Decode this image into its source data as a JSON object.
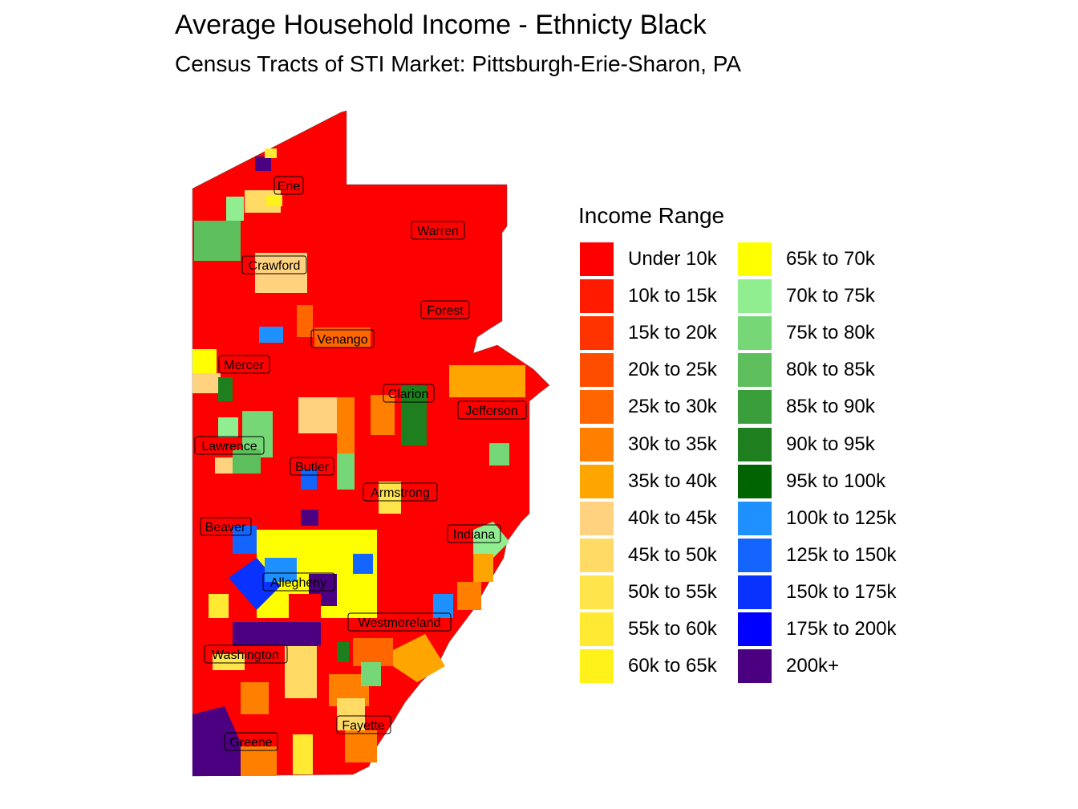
{
  "title": "Average Household Income - Ethnicty Black",
  "subtitle": "Census Tracts of STI Market: Pittsburgh-Erie-Sharon, PA",
  "legend": {
    "title": "Income Range",
    "items": [
      {
        "label": "Under 10k",
        "color": "#FF0000"
      },
      {
        "label": "10k to 15k",
        "color": "#FF1A00"
      },
      {
        "label": "15k to 20k",
        "color": "#FF3300"
      },
      {
        "label": "20k to 25k",
        "color": "#FF4D00"
      },
      {
        "label": "25k to 30k",
        "color": "#FF6600"
      },
      {
        "label": "30k to 35k",
        "color": "#FF8000"
      },
      {
        "label": "35k to 40k",
        "color": "#FFA500"
      },
      {
        "label": "40k to 45k",
        "color": "#FFD27F"
      },
      {
        "label": "45k to 50k",
        "color": "#FFDB66"
      },
      {
        "label": "50k to 55k",
        "color": "#FFE44C"
      },
      {
        "label": "55k to 60k",
        "color": "#FFE933"
      },
      {
        "label": "60k to 65k",
        "color": "#FFF21A"
      },
      {
        "label": "65k to 70k",
        "color": "#FFFF00"
      },
      {
        "label": "70k to 75k",
        "color": "#90EE90"
      },
      {
        "label": "75k to 80k",
        "color": "#76D776"
      },
      {
        "label": "80k to 85k",
        "color": "#5CBF5C"
      },
      {
        "label": "85k to 90k",
        "color": "#3A9E3A"
      },
      {
        "label": "90k to 95k",
        "color": "#1E7F1E"
      },
      {
        "label": "95k to 100k",
        "color": "#006400"
      },
      {
        "label": "100k to 125k",
        "color": "#1E90FF"
      },
      {
        "label": "125k to 150k",
        "color": "#1464FF"
      },
      {
        "label": "150k to 175k",
        "color": "#0A32FF"
      },
      {
        "label": "175k to 200k",
        "color": "#0000FF"
      },
      {
        "label": "200k+",
        "color": "#4B0082"
      }
    ]
  },
  "counties": [
    "Erie",
    "Warren",
    "Crawford",
    "Forest",
    "Venango",
    "Mercer",
    "Clarion",
    "Jefferson",
    "Lawrence",
    "Butler",
    "Armstrong",
    "Beaver",
    "Indiana",
    "Allegheny",
    "Westmoreland",
    "Washington",
    "Fayette",
    "Greene"
  ]
}
